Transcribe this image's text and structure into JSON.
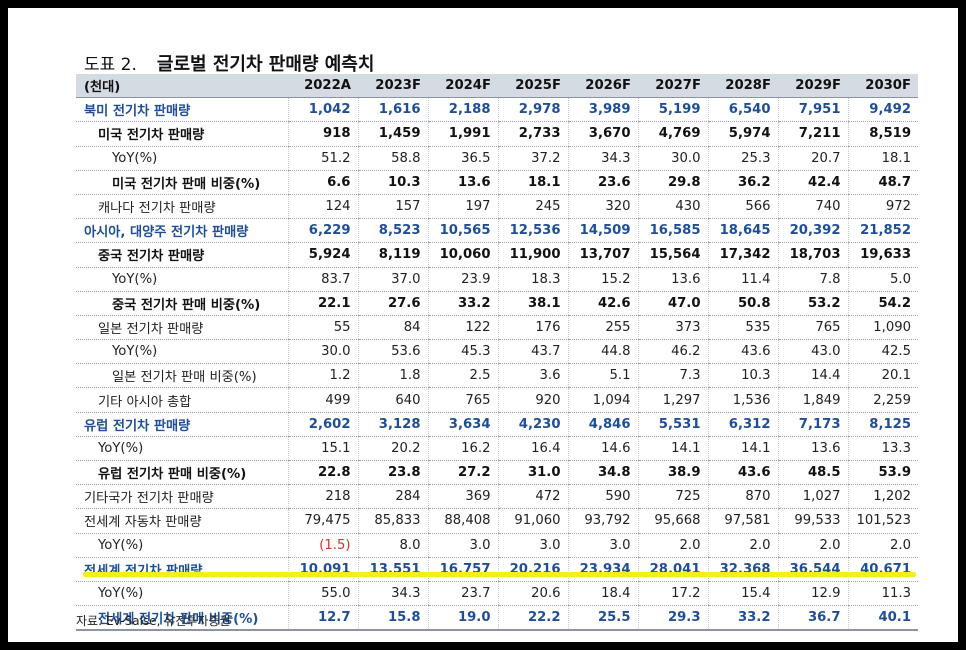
{
  "figure": {
    "label": "도표 2.",
    "title": "글로벌 전기차 판매량 예측치"
  },
  "table": {
    "unit_header": "(천대)",
    "columns": [
      "2022A",
      "2023F",
      "2024F",
      "2025F",
      "2026F",
      "2027F",
      "2028F",
      "2029F",
      "2030F"
    ],
    "rows": [
      {
        "label": "북미 전기차 판매량",
        "indent": 0,
        "style": "blue",
        "values": [
          "1,042",
          "1,616",
          "2,188",
          "2,978",
          "3,989",
          "5,199",
          "6,540",
          "7,951",
          "9,492"
        ]
      },
      {
        "label": "미국 전기차 판매량",
        "indent": 1,
        "style": "bold",
        "values": [
          "918",
          "1,459",
          "1,991",
          "2,733",
          "3,670",
          "4,769",
          "5,974",
          "7,211",
          "8,519"
        ]
      },
      {
        "label": "YoY(%)",
        "indent": 2,
        "style": "normal",
        "values": [
          "51.2",
          "58.8",
          "36.5",
          "37.2",
          "34.3",
          "30.0",
          "25.3",
          "20.7",
          "18.1"
        ]
      },
      {
        "label": "미국 전기차 판매 비중(%)",
        "indent": 2,
        "style": "bold",
        "values": [
          "6.6",
          "10.3",
          "13.6",
          "18.1",
          "23.6",
          "29.8",
          "36.2",
          "42.4",
          "48.7"
        ]
      },
      {
        "label": "캐나다 전기차 판매량",
        "indent": 1,
        "style": "normal",
        "values": [
          "124",
          "157",
          "197",
          "245",
          "320",
          "430",
          "566",
          "740",
          "972"
        ]
      },
      {
        "label": "아시아, 대양주 전기차 판매량",
        "indent": 0,
        "style": "blue",
        "values": [
          "6,229",
          "8,523",
          "10,565",
          "12,536",
          "14,509",
          "16,585",
          "18,645",
          "20,392",
          "21,852"
        ]
      },
      {
        "label": "중국 전기차 판매량",
        "indent": 1,
        "style": "bold",
        "values": [
          "5,924",
          "8,119",
          "10,060",
          "11,900",
          "13,707",
          "15,564",
          "17,342",
          "18,703",
          "19,633"
        ]
      },
      {
        "label": "YoY(%)",
        "indent": 2,
        "style": "normal",
        "values": [
          "83.7",
          "37.0",
          "23.9",
          "18.3",
          "15.2",
          "13.6",
          "11.4",
          "7.8",
          "5.0"
        ]
      },
      {
        "label": "중국 전기차 판매 비중(%)",
        "indent": 2,
        "style": "bold",
        "values": [
          "22.1",
          "27.6",
          "33.2",
          "38.1",
          "42.6",
          "47.0",
          "50.8",
          "53.2",
          "54.2"
        ]
      },
      {
        "label": "일본 전기차 판매량",
        "indent": 1,
        "style": "normal",
        "values": [
          "55",
          "84",
          "122",
          "176",
          "255",
          "373",
          "535",
          "765",
          "1,090"
        ]
      },
      {
        "label": "YoY(%)",
        "indent": 2,
        "style": "normal",
        "values": [
          "30.0",
          "53.6",
          "45.3",
          "43.7",
          "44.8",
          "46.2",
          "43.6",
          "43.0",
          "42.5"
        ]
      },
      {
        "label": "일본 전기차 판매 비중(%)",
        "indent": 2,
        "style": "normal",
        "values": [
          "1.2",
          "1.8",
          "2.5",
          "3.6",
          "5.1",
          "7.3",
          "10.3",
          "14.4",
          "20.1"
        ]
      },
      {
        "label": "기타 아시아 총합",
        "indent": 1,
        "style": "normal",
        "values": [
          "499",
          "640",
          "765",
          "920",
          "1,094",
          "1,297",
          "1,536",
          "1,849",
          "2,259"
        ]
      },
      {
        "label": "유럽 전기차 판매량",
        "indent": 0,
        "style": "blue",
        "values": [
          "2,602",
          "3,128",
          "3,634",
          "4,230",
          "4,846",
          "5,531",
          "6,312",
          "7,173",
          "8,125"
        ]
      },
      {
        "label": "YoY(%)",
        "indent": 1,
        "style": "normal",
        "values": [
          "15.1",
          "20.2",
          "16.2",
          "16.4",
          "14.6",
          "14.1",
          "14.1",
          "13.6",
          "13.3"
        ]
      },
      {
        "label": "유럽 전기차 판매 비중(%)",
        "indent": 1,
        "style": "bold",
        "values": [
          "22.8",
          "23.8",
          "27.2",
          "31.0",
          "34.8",
          "38.9",
          "43.6",
          "48.5",
          "53.9"
        ]
      },
      {
        "label": "기타국가 전기차 판매량",
        "indent": 0,
        "style": "normal",
        "values": [
          "218",
          "284",
          "369",
          "472",
          "590",
          "725",
          "870",
          "1,027",
          "1,202"
        ]
      },
      {
        "label": "전세계 자동차 판매량",
        "indent": 0,
        "style": "normal",
        "values": [
          "79,475",
          "85,833",
          "88,408",
          "91,060",
          "93,792",
          "95,668",
          "97,581",
          "99,533",
          "101,523"
        ]
      },
      {
        "label": "YoY(%)",
        "indent": 1,
        "style": "normal",
        "values": [
          "(1.5)",
          "8.0",
          "3.0",
          "3.0",
          "3.0",
          "2.0",
          "2.0",
          "2.0",
          "2.0"
        ],
        "negative_first": true
      },
      {
        "label": "전세계 전기차 판매량",
        "indent": 0,
        "style": "blue",
        "values": [
          "10,091",
          "13,551",
          "16,757",
          "20,216",
          "23,934",
          "28,041",
          "32,368",
          "36,544",
          "40,671"
        ]
      },
      {
        "label": "YoY(%)",
        "indent": 1,
        "style": "highlight",
        "values": [
          "55.0",
          "34.3",
          "23.7",
          "20.6",
          "18.4",
          "17.2",
          "15.4",
          "12.9",
          "11.3"
        ]
      },
      {
        "label": "전세계 전기차 판매 비중(%)",
        "indent": 1,
        "style": "blue",
        "values": [
          "12.7",
          "15.8",
          "19.0",
          "22.2",
          "25.5",
          "29.3",
          "33.2",
          "36.7",
          "40.1"
        ]
      }
    ]
  },
  "source": "자료: Ev-Salse, 유진투자증권",
  "colors": {
    "blue_text": "#1f4e96",
    "header_bg": "#d5dbe3",
    "negative": "#d0342c",
    "highlight": "#f4ee1a"
  }
}
